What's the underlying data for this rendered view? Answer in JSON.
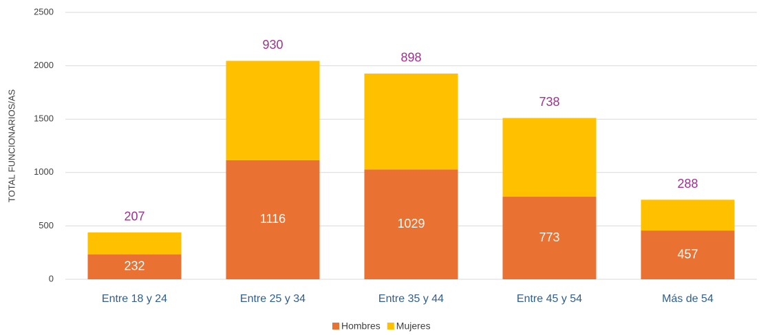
{
  "chart_data": {
    "type": "bar",
    "stacked": true,
    "y_label": "TOTAL FUNCIONARIOS/AS",
    "categories": [
      "Entre 18 y 24",
      "Entre 25 y 34",
      "Entre 35 y 44",
      "Entre 45 y 54",
      "Más de 54"
    ],
    "series": [
      {
        "name": "Hombres",
        "color": "#e97132",
        "values": [
          232,
          1116,
          1029,
          773,
          457
        ]
      },
      {
        "name": "Mujeres",
        "color": "#ffc000",
        "values": [
          207,
          930,
          898,
          738,
          288
        ]
      }
    ],
    "ylim": [
      0,
      2500
    ],
    "yticks": [
      0,
      500,
      1000,
      1500,
      2000,
      2500
    ],
    "grid": true,
    "legend": "bottom"
  }
}
